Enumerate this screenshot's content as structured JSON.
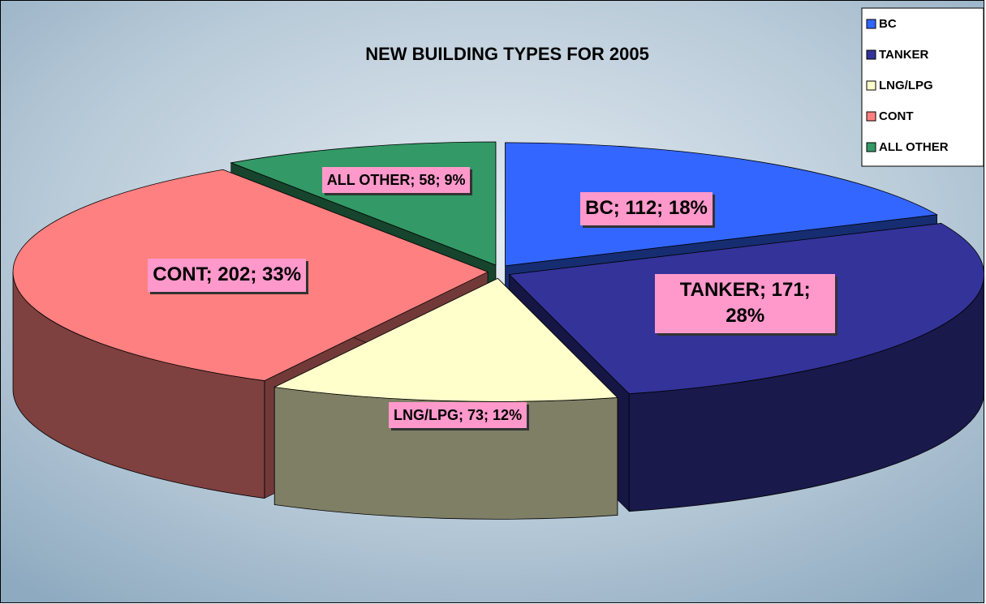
{
  "chart_data": {
    "type": "pie",
    "title": "NEW BUILDING TYPES FOR 2005",
    "categories": [
      "BC",
      "TANKER",
      "LNG/LPG",
      "CONT",
      "ALL OTHER"
    ],
    "values": [
      112,
      171,
      73,
      202,
      58
    ],
    "value_labels": [
      "BC; 112; 18%",
      "TANKER; 171; 28%",
      "LNG/LPG; 73; 12%",
      "CONT; 202; 33%",
      "ALL OTHER; 58; 9%"
    ],
    "colors": [
      "#3366ff",
      "#333399",
      "#ffffcc",
      "#ff8080",
      "#339966"
    ],
    "legend": "top-right"
  }
}
